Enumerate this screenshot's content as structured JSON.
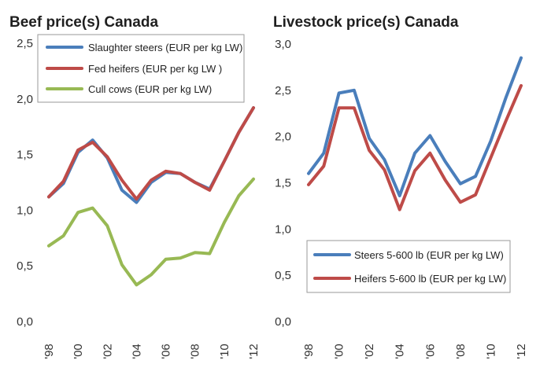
{
  "chart_data": [
    {
      "type": "line",
      "title": "Beef price(s) Canada",
      "x": [
        1998,
        1999,
        2000,
        2001,
        2002,
        2003,
        2004,
        2005,
        2006,
        2007,
        2008,
        2009,
        2010,
        2011,
        2012
      ],
      "xtick_labels": [
        "'98",
        "'00",
        "'02",
        "'04",
        "'06",
        "'08",
        "'10",
        "'12"
      ],
      "xtick_values": [
        1998,
        2000,
        2002,
        2004,
        2006,
        2008,
        2010,
        2012
      ],
      "ylim": [
        0,
        2.5
      ],
      "yticks": [
        0,
        0.5,
        1.0,
        1.5,
        2.0,
        2.5
      ],
      "ytick_labels": [
        "0,0",
        "0,5",
        "1,0",
        "1,5",
        "2,0",
        "2,5"
      ],
      "legend_position": "top-left",
      "series": [
        {
          "name": "Slaughter steers (EUR per kg LW)",
          "color": "#4a7ebb",
          "values": [
            1.12,
            1.24,
            1.52,
            1.63,
            1.47,
            1.18,
            1.07,
            1.25,
            1.34,
            1.33,
            1.25,
            1.19,
            1.44,
            1.7,
            1.92
          ]
        },
        {
          "name": "Fed heifers (EUR per kg LW )",
          "color": "#be4b48",
          "values": [
            1.12,
            1.26,
            1.54,
            1.61,
            1.48,
            1.27,
            1.1,
            1.27,
            1.35,
            1.33,
            1.25,
            1.18,
            1.44,
            1.7,
            1.92
          ]
        },
        {
          "name": "Cull cows (EUR per kg LW)",
          "color": "#98b954",
          "values": [
            0.68,
            0.77,
            0.98,
            1.02,
            0.86,
            0.51,
            0.33,
            0.42,
            0.56,
            0.57,
            0.62,
            0.61,
            0.89,
            1.13,
            1.28
          ]
        }
      ]
    },
    {
      "type": "line",
      "title": "Livestock price(s) Canada",
      "x": [
        1998,
        1999,
        2000,
        2001,
        2002,
        2003,
        2004,
        2005,
        2006,
        2007,
        2008,
        2009,
        2010,
        2011,
        2012
      ],
      "xtick_labels": [
        "'98",
        "'00",
        "'02",
        "'04",
        "'06",
        "'08",
        "'10",
        "'12"
      ],
      "xtick_values": [
        1998,
        2000,
        2002,
        2004,
        2006,
        2008,
        2010,
        2012
      ],
      "ylim": [
        0,
        3.0
      ],
      "yticks": [
        0,
        0.5,
        1.0,
        1.5,
        2.0,
        2.5,
        3.0
      ],
      "ytick_labels": [
        "0,0",
        "0,5",
        "1,0",
        "1,5",
        "2,0",
        "2,5",
        "3,0"
      ],
      "legend_position": "bottom-left",
      "series": [
        {
          "name": "Steers 5-600 lb (EUR per kg LW)",
          "color": "#4a7ebb",
          "values": [
            1.6,
            1.82,
            2.47,
            2.5,
            1.98,
            1.75,
            1.36,
            1.82,
            2.01,
            1.73,
            1.49,
            1.57,
            1.95,
            2.42,
            2.85
          ]
        },
        {
          "name": "Heifers 5-600 lb (EUR per kg LW)",
          "color": "#be4b48",
          "values": [
            1.48,
            1.68,
            2.31,
            2.31,
            1.85,
            1.64,
            1.21,
            1.63,
            1.82,
            1.53,
            1.29,
            1.37,
            1.77,
            2.17,
            2.55
          ]
        }
      ]
    }
  ]
}
